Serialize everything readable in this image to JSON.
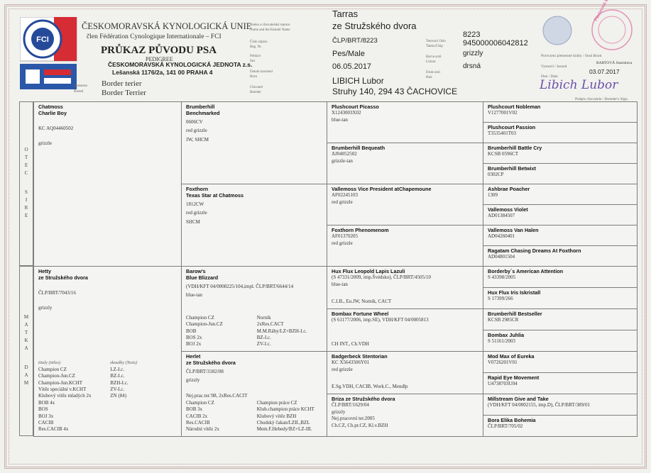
{
  "header": {
    "org": "ČESKOMORAVSKÁ KYNOLOGICKÁ UNIE",
    "member": "člen Fédération Cynologique Internationale – FCI",
    "title": "PRŮKAZ PŮVODU PSA",
    "subtitle": "PEDIGREE",
    "club": "ČESKOMORAVSKÁ KYNOLOGICKÁ JEDNOTA z.s.",
    "address": "Lešanská 1176/2a, 141 00 PRAHA 4",
    "logo": "FCI",
    "breed_label": [
      "Plemeno",
      "Breed"
    ],
    "breed": [
      "Border terier",
      "Border Terrier"
    ]
  },
  "record": {
    "name_label": [
      "Jméno a chovatelská stanice",
      "Name and the Kennel Name"
    ],
    "name": [
      "Tarras",
      "ze Stružského dvora"
    ],
    "reg_label": [
      "Číslo zápisu",
      "Reg. Nr."
    ],
    "reg": "ČLP/BRT/8223",
    "sex_label": [
      "Pohlaví",
      "Sex"
    ],
    "sex": "Pes/Male",
    "born_label": [
      "Datum narození",
      "Born"
    ],
    "born": "06.05.2017",
    "breeder_label": [
      "Chovatel",
      "Breeder"
    ],
    "breeder": [
      "LIBICH Lubor",
      "Struhy 140, 294 43 ČACHOVICE"
    ],
    "tattoo_label": [
      "Tetovací číslo",
      "Tattoo/Chip"
    ],
    "tattoo": [
      "8223",
      "945000006042812"
    ],
    "colour_label": [
      "Barva srsti",
      "Colour"
    ],
    "colour": "grizzly",
    "hair_label": [
      "Druh srsti",
      "Hair"
    ],
    "hair": "drsná"
  },
  "certification": {
    "stud_book": "Potvrzení plemenné knihy / Stud Book",
    "issued_label": "Vystavil / Issued",
    "issued_by": "BARTOVÁ Stanislava",
    "date_label": "Dne / Date",
    "date": "03.07.2017",
    "signature": "Libich Lubor",
    "signature_label": "Podpis chovatele / Breeder's Sign.",
    "stamp": "Plemenná kniha ČMKU"
  },
  "pedigree": {
    "sire": {
      "side_labels": [
        "OTEC",
        "SIRE"
      ],
      "generations": [
        [
          {
            "name": [
              "Chatmoss",
              "Charlie Boy"
            ],
            "lines": [
              "KC AQ04460502",
              "grizzle"
            ]
          }
        ],
        [
          {
            "name": [
              "Brumberhill",
              "Benchmarked"
            ],
            "lines": [
              "0606CV",
              "red grizzle",
              "JW, SHCM"
            ]
          },
          {
            "name": [
              "Foxthorn",
              "Texas Star at Chatmoss"
            ],
            "lines": [
              "1812CW",
              "red grizzle",
              "SHCM"
            ]
          }
        ],
        [
          {
            "name": [
              "Plushcourt Picasso"
            ],
            "lines": [
              "X1243003X02",
              "blue-tan"
            ]
          },
          {
            "name": [
              "Brumberhill Bequeath"
            ],
            "lines": [
              "AJ04052502",
              "grizzle-tan"
            ]
          },
          {
            "name": [
              "Vallemoss Vice President atChapemoune"
            ],
            "lines": [
              "AF02245103",
              "red grizzle"
            ]
          },
          {
            "name": [
              "Foxthorn Phenomenom"
            ],
            "lines": [
              "AF01370205",
              "red grizzle"
            ]
          }
        ],
        [
          {
            "name": [
              "Plushcourt Nobleman"
            ],
            "lines": [
              "V1277001V02"
            ]
          },
          {
            "name": [
              "Plushcourt Passion"
            ],
            "lines": [
              "T3535401T03"
            ]
          },
          {
            "name": [
              "Brumberhill Battle Cry"
            ],
            "lines": [
              "KCSB 0596CT"
            ]
          },
          {
            "name": [
              "Brumberhill Betwixt"
            ],
            "lines": [
              "0302CP"
            ]
          },
          {
            "name": [
              "Ashbrae Poacher"
            ],
            "lines": [
              "1309"
            ]
          },
          {
            "name": [
              "Vallemoss Violet"
            ],
            "lines": [
              "AD01384507"
            ]
          },
          {
            "name": [
              "Vallemoss Van Halen"
            ],
            "lines": [
              "AD04260401"
            ]
          },
          {
            "name": [
              "Ragatam Chasing Dreams At Foxthorn"
            ],
            "lines": [
              "AD04801504"
            ]
          }
        ]
      ]
    },
    "dam": {
      "side_labels": [
        "MATKA",
        "DAM"
      ],
      "generations": [
        [
          {
            "name": [
              "Hetty",
              "ze Stružského dvora"
            ],
            "lines": [
              "ČLP/BRT/7043/16",
              "grizzly"
            ],
            "titles": {
              "headers": [
                "tituly (titles)",
                "zkoušky (Tests)"
              ],
              "columns": [
                [
                  "Champion CZ",
                  "Champion-Jun.CZ",
                  "Champion-Jun.KCHT",
                  "Vítěz speciální v.KCHT",
                  "Klubový vítěz mladých 2x",
                  "BOB 4x",
                  "BOS",
                  "BOJ 3x",
                  "CACIB",
                  "Res.CACIB 4x"
                ],
                [
                  "LZ-I.c.",
                  "BZ-I.c.",
                  "BZH-I.c.",
                  "ZV-I.c.",
                  "ZN (84)"
                ]
              ]
            }
          }
        ],
        [
          {
            "name": [
              "Barow's",
              "Blue Blizzard"
            ],
            "lines": [
              "(VDH/KFT 04/0008225/104,impl. ČLP/BRT/6644/14",
              "blue-tan"
            ],
            "titles": {
              "columns": [
                [
                  "Champion CZ",
                  "Champion-Jun.CZ",
                  "BOB",
                  "BOS 2x",
                  "BOJ 2x"
                ],
                [
                  "Norník",
                  "2xRes.CACT",
                  "M.M.Ráby/LZ+BZH-I.c.",
                  "BZ-I.c.",
                  "ZV-I.c."
                ]
              ]
            }
          },
          {
            "name": [
              "Herlet",
              "ze Stružského dvora"
            ],
            "lines": [
              "ČLP/BRT/3182/08",
              "grizzly"
            ],
            "titles": {
              "lead": "Nej.prac.ter.'08, 2xRes.CACIT",
              "columns": [
                [
                  "Champion CZ",
                  "BOB 3x",
                  "CACIB 2x",
                  "Res.CACIB",
                  "Národní vítěz 2x"
                ],
                [
                  "Champion práce CZ",
                  "Klub.champion práce KCHT",
                  "Klubový vítěz BZH",
                  "Chodský čakan/LZII.,BZL",
                  "Mem.F.Hebedy/BZ+LZ-III."
                ]
              ]
            }
          }
        ],
        [
          {
            "name": [
              "Hux Flux Leopold Lapis Lazuli"
            ],
            "lines": [
              "(S 47331/2009, imp.Švédsko), ČLP/BRT/4505/10",
              "blue-tan"
            ],
            "foot": [
              "C.I.B., Eu.JW, Norník, CACT"
            ]
          },
          {
            "name": [
              "Bombax Fortune Wheel"
            ],
            "lines": [
              "(S 61177/2006, imp.SE), VDH/KFT 04/0005813"
            ],
            "foot": [
              "CH INT., Ch.VDH"
            ]
          },
          {
            "name": [
              "Badgerbeck Stentorian"
            ],
            "lines": [
              "KC X5643506Y01",
              "red grizzle"
            ],
            "foot": [
              "E.Sg.VDH, CACIB, Work.C., Mendlp"
            ]
          },
          {
            "name": [
              "Briza ze Stružského dvora"
            ],
            "lines": [
              "ČLP/BRT/1629/04",
              "grizzly",
              "Nej.pracovní ter.2005",
              "Ch.CZ, Ch.pr.CZ, Kl.v.BZH"
            ]
          }
        ],
        [
          {
            "name": [
              "Borderby´s American Attention"
            ],
            "lines": [
              "S 43398/2005"
            ]
          },
          {
            "name": [
              "Hux Flux Iris Iskristall"
            ],
            "lines": [
              "S 17399/266"
            ]
          },
          {
            "name": [
              "Brumberhill Bestseller"
            ],
            "lines": [
              "KCSB 2985CR"
            ]
          },
          {
            "name": [
              "Bombax Juhlia"
            ],
            "lines": [
              "S 51161/2003"
            ]
          },
          {
            "name": [
              "Mod Max of Eureka"
            ],
            "lines": [
              "V0726201V01"
            ]
          },
          {
            "name": [
              "Rapid Eye Movement"
            ],
            "lines": [
              "U4738703U04"
            ]
          },
          {
            "name": [
              "Millstream Give and Take"
            ],
            "lines": [
              "(VDH/KFT 04/0002155, imp.D), ČLP/BRT/389/01"
            ]
          },
          {
            "name": [
              "Bora Elika Bohemia"
            ],
            "lines": [
              "ČLP/BRT/705/02"
            ]
          }
        ]
      ]
    }
  }
}
